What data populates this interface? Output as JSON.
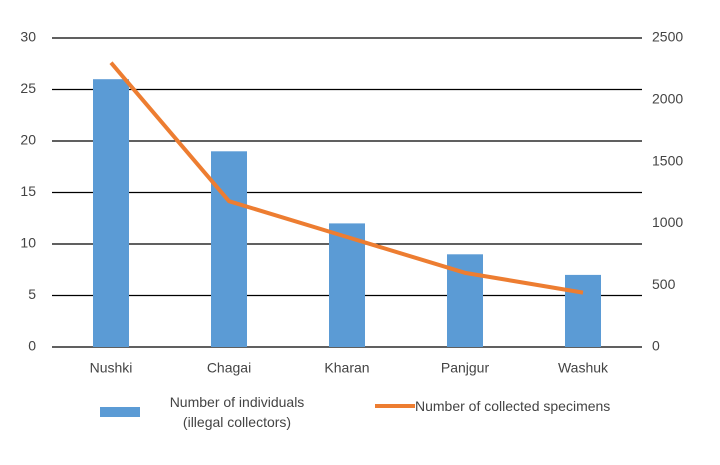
{
  "chart_data": {
    "type": "bar-line",
    "categories": [
      "Nushki",
      "Chagai",
      "Kharan",
      "Panjgur",
      "Washuk"
    ],
    "series": [
      {
        "name": "Number of individuals (illegal collectors)",
        "type": "bar",
        "color": "#5b9bd5",
        "values": [
          26,
          19,
          12,
          9,
          7
        ]
      },
      {
        "name": "Number of collected specimens",
        "type": "line",
        "axis": "y2",
        "color": "#ed7d31",
        "values": [
          2300,
          1180,
          890,
          600,
          440
        ]
      }
    ],
    "ylim": [
      0,
      30
    ],
    "yticks": [
      0,
      5,
      10,
      15,
      20,
      25,
      30
    ],
    "y2lim": [
      0,
      2500
    ],
    "y2ticks": [
      0,
      500,
      1000,
      1500,
      2000,
      2500
    ],
    "grid": true
  }
}
